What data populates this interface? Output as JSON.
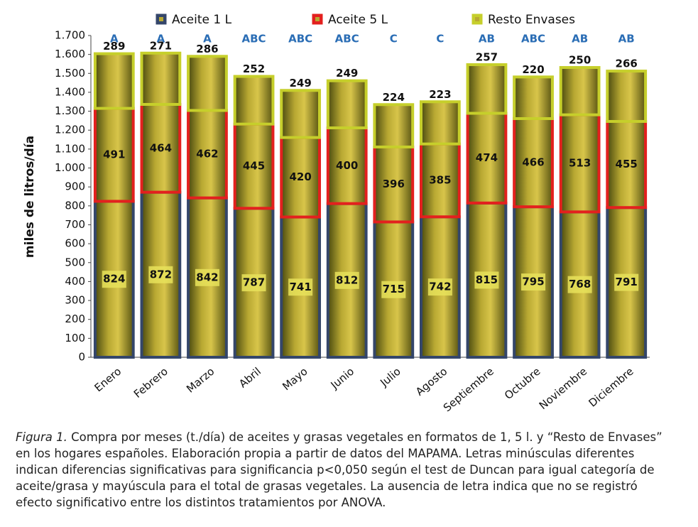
{
  "chart_data": {
    "type": "stacked_bar",
    "ylabel": "miles de litros/día",
    "categories": [
      "Enero",
      "Febrero",
      "Marzo",
      "Abril",
      "Mayo",
      "Junio",
      "Julio",
      "Agosto",
      "Septiembre",
      "Octubre",
      "Noviembre",
      "Diciembre"
    ],
    "series": [
      {
        "name": "Aceite 1 L",
        "color": "#34466a",
        "values": [
          824,
          872,
          842,
          787,
          741,
          812,
          715,
          742,
          815,
          795,
          768,
          791
        ]
      },
      {
        "name": "Aceite 5 L",
        "color": "#e3201e",
        "values": [
          491,
          464,
          462,
          445,
          420,
          400,
          396,
          385,
          474,
          466,
          513,
          455
        ]
      },
      {
        "name": "Resto Envases",
        "color": "#c6cf2b",
        "values": [
          289,
          271,
          286,
          252,
          249,
          249,
          224,
          223,
          257,
          220,
          250,
          266
        ]
      }
    ],
    "significance": [
      "A",
      "A",
      "A",
      "ABC",
      "ABC",
      "ABC",
      "C",
      "C",
      "AB",
      "ABC",
      "AB",
      "AB"
    ],
    "ylim": [
      0,
      1700
    ],
    "yticks": [
      0,
      100,
      200,
      300,
      400,
      500,
      600,
      700,
      800,
      900,
      {
        "value": 1000,
        "label": "1.000"
      },
      {
        "value": 1100,
        "label": "1.100"
      },
      {
        "value": 1200,
        "label": "1.200"
      },
      {
        "value": 1300,
        "label": "1.300"
      },
      {
        "value": 1400,
        "label": "1.400"
      },
      {
        "value": 1500,
        "label": "1.500"
      },
      {
        "value": 1600,
        "label": "1.600"
      },
      {
        "value": 1700,
        "label": "1.700"
      }
    ],
    "legend": "top"
  },
  "caption": {
    "label": "Figura 1.",
    "text": "Compra por meses (t./día) de aceites y grasas vegetales en formatos de 1, 5 l. y “Resto de Envases” en los hogares españoles. Elaboración propia a partir de datos del MAPAMA. Letras minúsculas diferentes indican diferencias significativas para significancia p<0,050 según el test de Duncan para igual categoría de aceite/grasa y mayúscula para el total de grasas vegetales. La ausencia de letra indica que no se registró efecto significativo entre los distintos tratamientos por ANOVA."
  }
}
